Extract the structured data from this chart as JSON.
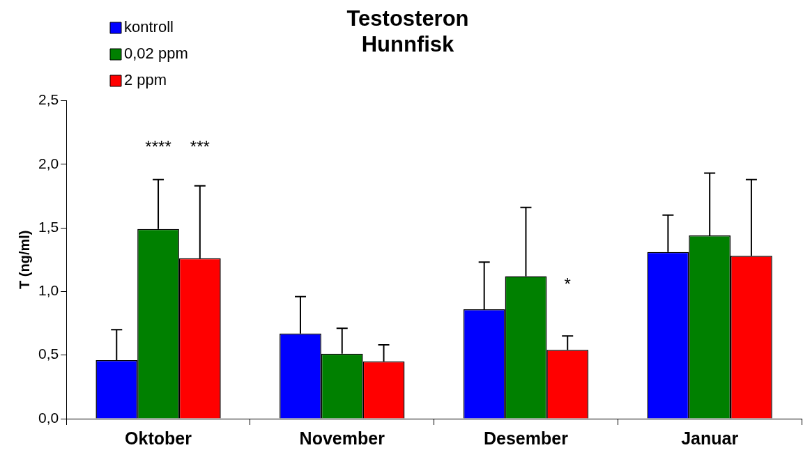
{
  "chart_data": {
    "type": "bar",
    "title": "Testosteron\nHunnfisk",
    "ylabel": "T (ng/ml)",
    "categories": [
      "Oktober",
      "November",
      "Desember",
      "Januar"
    ],
    "series": [
      {
        "name": "kontroll",
        "color": "#0000ff",
        "values": [
          0.46,
          0.67,
          0.86,
          1.31
        ],
        "errors": [
          [
            0.46,
            0.7
          ],
          [
            0.67,
            0.96
          ],
          [
            0.86,
            1.23
          ],
          [
            1.31,
            1.6
          ]
        ]
      },
      {
        "name": "0,02 ppm",
        "color": "#008000",
        "values": [
          1.49,
          0.51,
          1.12,
          1.44
        ],
        "errors": [
          [
            1.49,
            1.88
          ],
          [
            0.51,
            0.71
          ],
          [
            1.12,
            1.66
          ],
          [
            1.44,
            1.93
          ]
        ]
      },
      {
        "name": "2 ppm",
        "color": "#ff0000",
        "values": [
          1.26,
          0.45,
          0.54,
          1.28
        ],
        "errors": [
          [
            1.26,
            1.83
          ],
          [
            0.45,
            0.58
          ],
          [
            0.54,
            0.65
          ],
          [
            1.28,
            1.88
          ]
        ]
      }
    ],
    "ylim": [
      0,
      2.5
    ],
    "yticks": [
      {
        "value": 0,
        "label": "0,0"
      },
      {
        "value": 0.5,
        "label": "0,5"
      },
      {
        "value": 1,
        "label": "1,0"
      },
      {
        "value": 1.5,
        "label": "1,5"
      },
      {
        "value": 2,
        "label": "2,0"
      },
      {
        "value": 2.5,
        "label": "2,5"
      }
    ],
    "annotations": [
      "****",
      "***",
      "*"
    ],
    "grid": false,
    "legend": "top left"
  }
}
